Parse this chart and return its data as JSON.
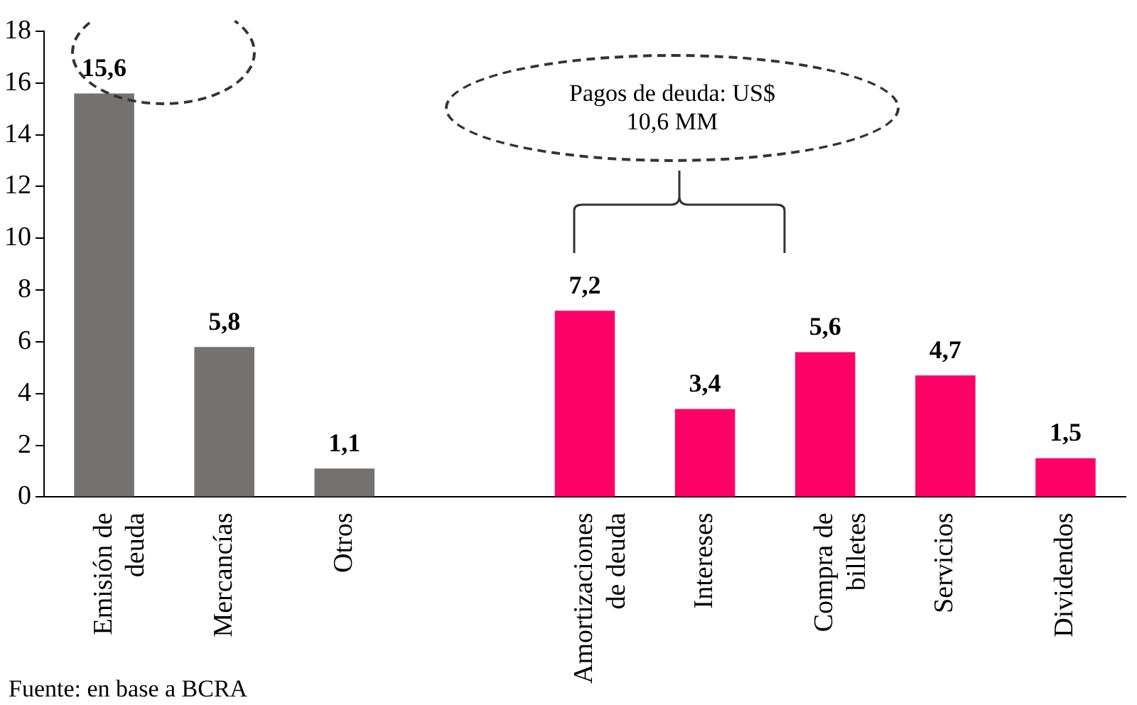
{
  "chart_data": {
    "type": "bar",
    "categories": [
      "Emisión de\ndeuda",
      "Mercancías",
      "Otros",
      null,
      "Amortizaciones\nde deuda",
      "Intereses",
      "Compra de\nbilletes",
      "Servicios",
      "Dividendos"
    ],
    "values": [
      15.6,
      5.8,
      1.1,
      null,
      7.2,
      3.4,
      5.6,
      4.7,
      1.5
    ],
    "colors": [
      "#767171",
      "#767171",
      "#767171",
      "#767171",
      "#ff0066",
      "#ff0066",
      "#ff0066",
      "#ff0066",
      "#ff0066"
    ],
    "value_labels": [
      "15,6",
      "5,8",
      "1,1",
      null,
      "7,2",
      "3,4",
      "5,6",
      "4,7",
      "1,5"
    ],
    "ylim": [
      0,
      18
    ],
    "yticks": [
      0,
      2,
      4,
      6,
      8,
      10,
      12,
      14,
      16,
      18
    ],
    "grid": false,
    "legend": false,
    "annotations": [
      "Pagos de deuda: US$\n10,6 MM",
      "Fuente: en base a BCRA"
    ]
  }
}
